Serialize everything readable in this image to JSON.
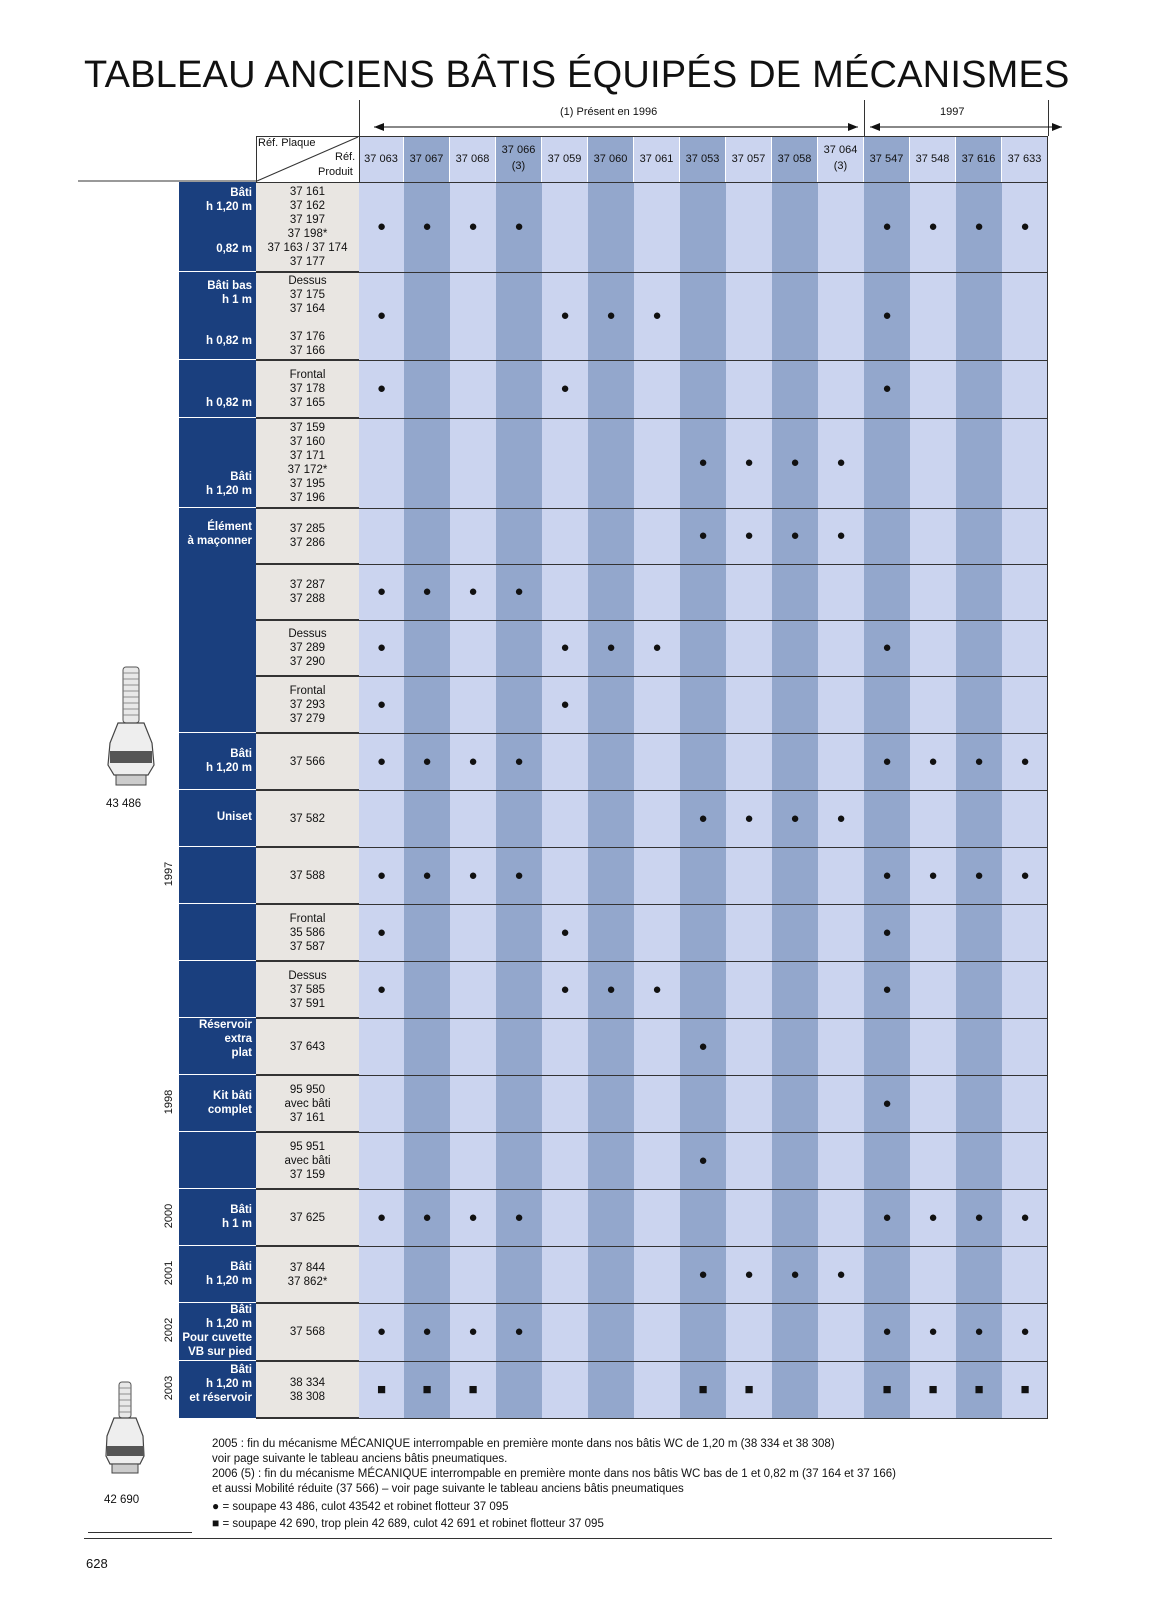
{
  "page_title": "TABLEAU ANCIENS BÂTIS ÉQUIPÉS DE MÉCANISMES",
  "banner_1996": "(1) Présent en 1996",
  "banner_1997": "1997",
  "corner": {
    "plaque": "Réf. Plaque",
    "ref": "Réf.",
    "produit": "Produit"
  },
  "columns": [
    {
      "label": "37 063",
      "note": ""
    },
    {
      "label": "37 067",
      "note": ""
    },
    {
      "label": "37 068",
      "note": ""
    },
    {
      "label": "37 066",
      "note": "(3)"
    },
    {
      "label": "37 059",
      "note": ""
    },
    {
      "label": "37 060",
      "note": ""
    },
    {
      "label": "37 061",
      "note": ""
    },
    {
      "label": "37 053",
      "note": ""
    },
    {
      "label": "37 057",
      "note": ""
    },
    {
      "label": "37 058",
      "note": ""
    },
    {
      "label": "37 064",
      "note": "(3)"
    },
    {
      "label": "37 547",
      "note": ""
    },
    {
      "label": "37 548",
      "note": ""
    },
    {
      "label": "37 616",
      "note": ""
    },
    {
      "label": "37 633",
      "note": ""
    }
  ],
  "colors": {
    "light": "#cbd4ef",
    "dark": "#93a7cc",
    "navy": "#1a3f7e",
    "product_bg": "#e9e6e2"
  },
  "rows": [
    {
      "products": [
        "37 161",
        "37 162",
        "37 197",
        "37 198*",
        "37 163 / 37 174",
        "37 177"
      ],
      "cols": [
        0,
        1,
        2,
        3,
        11,
        12,
        13,
        14
      ],
      "mark": "●"
    },
    {
      "products": [
        "Dessus",
        "37 175",
        "37 164",
        "",
        "37 176",
        "37 166"
      ],
      "cols": [
        0,
        4,
        5,
        6,
        11
      ],
      "mark": "●"
    },
    {
      "products": [
        "Frontal",
        "37 178",
        "37 165"
      ],
      "cols": [
        0,
        4,
        11
      ],
      "mark": "●"
    },
    {
      "products": [
        "37 159",
        "37 160",
        "37 171",
        "37 172*",
        "37 195",
        "37 196"
      ],
      "cols": [
        7,
        8,
        9,
        10
      ],
      "mark": "●"
    },
    {
      "products": [
        "37 285",
        "37 286"
      ],
      "cols": [
        7,
        8,
        9,
        10
      ],
      "mark": "●"
    },
    {
      "products": [
        "37 287",
        "37 288"
      ],
      "cols": [
        0,
        1,
        2,
        3
      ],
      "mark": "●"
    },
    {
      "products": [
        "Dessus",
        "37 289",
        "37 290"
      ],
      "cols": [
        0,
        4,
        5,
        6,
        11
      ],
      "mark": "●"
    },
    {
      "products": [
        "Frontal",
        "37 293",
        "37 279"
      ],
      "cols": [
        0,
        4
      ],
      "mark": "●"
    },
    {
      "products": [
        "37 566"
      ],
      "cols": [
        0,
        1,
        2,
        3,
        11,
        12,
        13,
        14
      ],
      "mark": "●"
    },
    {
      "products": [
        "37 582"
      ],
      "cols": [
        7,
        8,
        9,
        10
      ],
      "mark": "●"
    },
    {
      "products": [
        "37 588"
      ],
      "cols": [
        0,
        1,
        2,
        3,
        11,
        12,
        13,
        14
      ],
      "mark": "●"
    },
    {
      "products": [
        "Frontal",
        "35 586",
        "37 587"
      ],
      "cols": [
        0,
        4,
        11
      ],
      "mark": "●"
    },
    {
      "products": [
        "Dessus",
        "37 585",
        "37 591"
      ],
      "cols": [
        0,
        4,
        5,
        6,
        11
      ],
      "mark": "●"
    },
    {
      "products": [
        "37 643"
      ],
      "cols": [
        7
      ],
      "mark": "●"
    },
    {
      "products": [
        "95 950",
        "avec bâti",
        "37 161"
      ],
      "cols": [
        11
      ],
      "mark": "●"
    },
    {
      "products": [
        "95 951",
        "avec bâti",
        "37 159"
      ],
      "cols": [
        7
      ],
      "mark": "●"
    },
    {
      "products": [
        "37 625"
      ],
      "cols": [
        0,
        1,
        2,
        3,
        11,
        12,
        13,
        14
      ],
      "mark": "●"
    },
    {
      "products": [
        "37 844",
        "37 862*"
      ],
      "cols": [
        7,
        8,
        9,
        10
      ],
      "mark": "●"
    },
    {
      "products": [
        "37 568"
      ],
      "cols": [
        0,
        1,
        2,
        3,
        11,
        12,
        13,
        14
      ],
      "mark": "●"
    },
    {
      "products": [
        "38 334",
        "38 308"
      ],
      "cols": [
        0,
        1,
        2,
        7,
        8,
        11,
        12,
        13,
        14
      ],
      "mark": "■"
    }
  ],
  "categories": {
    "c1a": "Bâti",
    "c1b": "h 1,20 m",
    "c1c": "0,82 m",
    "c2a": "Bâti bas",
    "c2b": "h 1 m",
    "c2c": "h 0,82 m",
    "c3": "h 0,82 m",
    "c4a": "Bâti",
    "c4b": "h 1,20 m",
    "c5a": "Élément",
    "c5b": "à maçonner",
    "c6a": "Bâti",
    "c6b": "h 1,20 m",
    "c7": "Uniset",
    "c8a": "Réservoir",
    "c8b": "extra",
    "c8c": "plat",
    "c9a": "Kit bâti",
    "c9b": "complet",
    "c10a": "Bâti",
    "c10b": "h 1 m",
    "c11a": "Bâti",
    "c11b": "h 1,20 m",
    "c12a": "Bâti",
    "c12b": "h 1,20 m",
    "c12c": "Pour cuvette",
    "c12d": "VB sur pied",
    "c13a": "Bâti",
    "c13b": "h 1,20 m",
    "c13c": "et réservoir"
  },
  "years": {
    "y1997": "1997",
    "y1998": "1998",
    "y2000": "2000",
    "y2001": "2001",
    "y2002": "2002",
    "y2003": "2003"
  },
  "images": {
    "valve1": "43 486",
    "valve2": "42 690"
  },
  "footnotes": {
    "l1": "2005 : fin du mécanisme MÉCANIQUE interrompable en première monte dans nos bâtis WC de 1,20 m (38 334 et 38 308)",
    "l2": "voir page suivante le tableau anciens bâtis pneumatiques.",
    "l3": "2006 (5) : fin du mécanisme MÉCANIQUE interrompable en première monte dans nos bâtis WC bas de 1 et 0,82 m (37 164 et 37 166)",
    "l4": "et aussi Mobilité réduite (37 566) – voir page suivante le tableau anciens bâtis pneumatiques",
    "legend_circle": "= soupape 43 486, culot 43542 et robinet flotteur 37 095",
    "legend_square": "= soupape 42 690, trop plein 42 689, culot 42 691 et robinet flotteur 37 095"
  },
  "page_number": "628"
}
